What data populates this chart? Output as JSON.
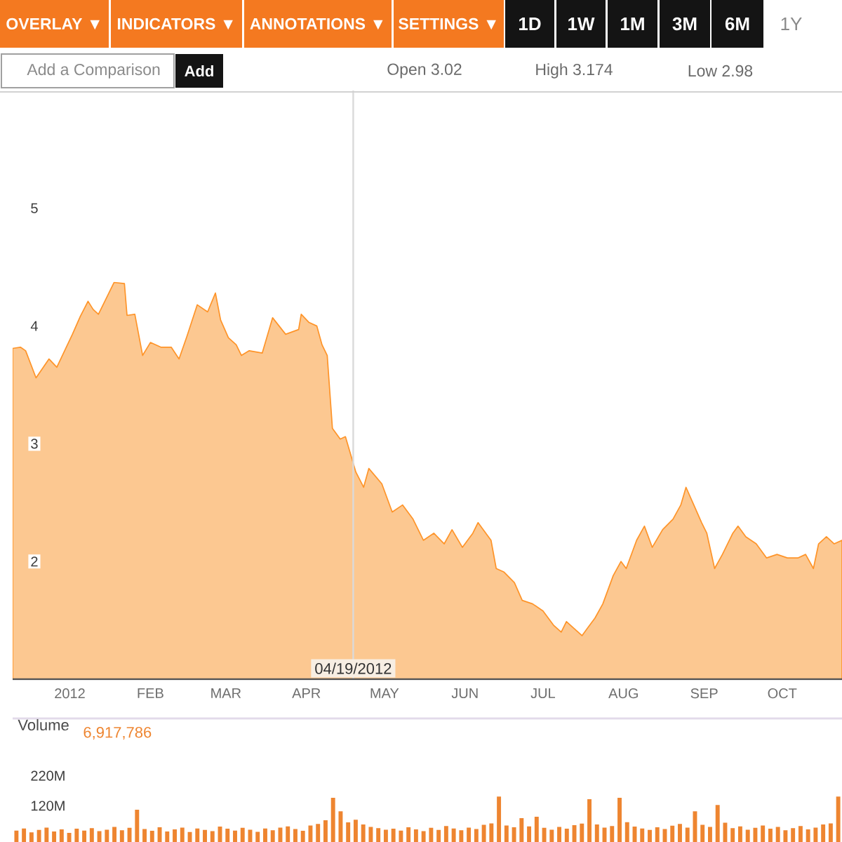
{
  "chart_data": [
    {
      "type": "area",
      "color": "#fcc891",
      "xlim": [
        "2011-12-10",
        "2012-10-24"
      ],
      "ylim": [
        1,
        6
      ],
      "xticks": [
        {
          "value": "2012-01-01",
          "label": "2012"
        },
        {
          "value": "2012-02-01",
          "label": "FEB"
        },
        {
          "value": "2012-03-01",
          "label": "MAR"
        },
        {
          "value": "2012-04-01",
          "label": "APR"
        },
        {
          "value": "2012-05-01",
          "label": "MAY"
        },
        {
          "value": "2012-06-01",
          "label": "JUN"
        },
        {
          "value": "2012-07-01",
          "label": "JUL"
        },
        {
          "value": "2012-08-01",
          "label": "AUG"
        },
        {
          "value": "2012-09-01",
          "label": "SEP"
        },
        {
          "value": "2012-10-01",
          "label": "OCT"
        }
      ],
      "yticks": [
        2,
        3,
        4,
        5
      ],
      "ref_lines": [
        {
          "axis": "x",
          "value": "2012-04-19",
          "label": "04/19/2012",
          "color": "#dadada"
        }
      ],
      "annotations": [
        "OVERLAY ▼",
        "INDICATORS ▼",
        "ANNOTATIONS ▼",
        "SETTINGS ▼",
        "1D",
        "1W",
        "1M",
        "3M",
        "6M",
        "1Y",
        "Add a Comparison",
        "Add",
        "Open 3.02",
        "High 3.174",
        "Low 2.98"
      ],
      "x": [
        "2011-12-10",
        "2011-12-13",
        "2011-12-15",
        "2011-12-19",
        "2011-12-24",
        "2011-12-27",
        "2012-01-02",
        "2012-01-05",
        "2012-01-08",
        "2012-01-10",
        "2012-01-12",
        "2012-01-18",
        "2012-01-22",
        "2012-01-23",
        "2012-01-26",
        "2012-01-29",
        "2012-02-01",
        "2012-02-05",
        "2012-02-09",
        "2012-02-12",
        "2012-02-15",
        "2012-02-19",
        "2012-02-23",
        "2012-02-26",
        "2012-02-28",
        "2012-03-02",
        "2012-03-05",
        "2012-03-07",
        "2012-03-10",
        "2012-03-15",
        "2012-03-19",
        "2012-03-24",
        "2012-03-29",
        "2012-03-30",
        "2012-04-02",
        "2012-04-05",
        "2012-04-07",
        "2012-04-09",
        "2012-04-11",
        "2012-04-14",
        "2012-04-16",
        "2012-04-20",
        "2012-04-23",
        "2012-04-25",
        "2012-04-30",
        "2012-05-04",
        "2012-05-08",
        "2012-05-12",
        "2012-05-16",
        "2012-05-20",
        "2012-05-24",
        "2012-05-27",
        "2012-05-31",
        "2012-06-04",
        "2012-06-06",
        "2012-06-11",
        "2012-06-13",
        "2012-06-16",
        "2012-06-20",
        "2012-06-23",
        "2012-06-27",
        "2012-07-01",
        "2012-07-05",
        "2012-07-08",
        "2012-07-10",
        "2012-07-13",
        "2012-07-16",
        "2012-07-18",
        "2012-07-21",
        "2012-07-24",
        "2012-07-28",
        "2012-07-31",
        "2012-08-02",
        "2012-08-06",
        "2012-08-09",
        "2012-08-12",
        "2012-08-16",
        "2012-08-20",
        "2012-08-23",
        "2012-08-25",
        "2012-08-28",
        "2012-08-31",
        "2012-09-02",
        "2012-09-05",
        "2012-09-08",
        "2012-09-12",
        "2012-09-14",
        "2012-09-17",
        "2012-09-21",
        "2012-09-25",
        "2012-09-29",
        "2012-10-03",
        "2012-10-07",
        "2012-10-10",
        "2012-10-13",
        "2012-10-15",
        "2012-10-18",
        "2012-10-21",
        "2012-10-24"
      ],
      "values": [
        3.81,
        3.82,
        3.79,
        3.56,
        3.72,
        3.65,
        3.93,
        4.08,
        4.21,
        4.14,
        4.1,
        4.37,
        4.36,
        4.09,
        4.1,
        3.75,
        3.86,
        3.82,
        3.82,
        3.72,
        3.91,
        4.18,
        4.12,
        4.28,
        4.05,
        3.9,
        3.84,
        3.75,
        3.79,
        3.77,
        4.07,
        3.93,
        3.97,
        4.1,
        4.03,
        4.0,
        3.84,
        3.75,
        3.13,
        3.04,
        3.06,
        2.76,
        2.63,
        2.79,
        2.66,
        2.42,
        2.48,
        2.36,
        2.18,
        2.24,
        2.15,
        2.27,
        2.12,
        2.24,
        2.33,
        2.18,
        1.94,
        1.91,
        1.82,
        1.67,
        1.64,
        1.58,
        1.46,
        1.4,
        1.49,
        1.43,
        1.37,
        1.43,
        1.52,
        1.64,
        1.88,
        2.0,
        1.94,
        2.18,
        2.3,
        2.12,
        2.27,
        2.36,
        2.48,
        2.63,
        2.48,
        2.33,
        2.24,
        1.94,
        2.06,
        2.24,
        2.3,
        2.21,
        2.15,
        2.03,
        2.06,
        2.03,
        2.03,
        2.06,
        1.94,
        2.15,
        2.21,
        2.15,
        2.18
      ]
    },
    {
      "type": "bar",
      "title": "Volume",
      "annotations": [
        "6,917,786"
      ],
      "color": "#ee8530",
      "tick_labels": "y",
      "ylim": [
        0,
        410
      ],
      "yticks": [
        {
          "value": 120,
          "label": "120M"
        },
        {
          "value": 220,
          "label": "220M"
        }
      ],
      "categories": [
        null,
        null,
        null,
        null,
        null,
        null,
        null,
        null,
        null,
        null,
        null,
        null,
        null,
        null,
        null,
        null,
        null,
        null,
        null,
        null,
        null,
        null,
        null,
        null,
        null,
        null,
        null,
        null,
        null,
        null,
        null,
        null,
        null,
        null,
        null,
        null,
        null,
        null,
        null,
        null,
        null,
        null,
        null,
        null,
        null,
        null,
        null,
        null,
        null,
        null,
        null,
        null,
        null,
        null,
        null,
        null,
        null,
        null,
        null,
        null,
        null,
        null,
        null,
        null,
        null,
        null,
        null,
        null,
        null,
        null,
        null,
        null,
        null,
        null,
        null,
        null,
        null,
        null,
        null,
        null,
        null,
        null,
        null,
        null,
        null,
        null,
        null,
        null,
        null,
        null,
        null,
        null,
        null,
        null,
        null,
        null,
        null,
        null,
        null,
        null,
        null,
        null,
        null,
        null,
        null,
        null,
        null,
        null,
        null,
        null
      ],
      "values": [
        38,
        45,
        32,
        40,
        48,
        35,
        42,
        30,
        44,
        38,
        46,
        36,
        41,
        50,
        39,
        47,
        107,
        43,
        37,
        49,
        35,
        42,
        48,
        33,
        45,
        40,
        36,
        51,
        44,
        38,
        47,
        41,
        34,
        45,
        39,
        48,
        52,
        43,
        37,
        55,
        60,
        72,
        147,
        102,
        65,
        74,
        58,
        50,
        46,
        41,
        44,
        38,
        49,
        42,
        36,
        47,
        40,
        53,
        45,
        39,
        48,
        43,
        57,
        62,
        151,
        55,
        49,
        79,
        52,
        84,
        47,
        41,
        50,
        44,
        56,
        61,
        142,
        58,
        48,
        53,
        147,
        66,
        51,
        45,
        40,
        49,
        43,
        54,
        60,
        48,
        102,
        57,
        50,
        123,
        64,
        46,
        52,
        41,
        47,
        55,
        44,
        50,
        39,
        46,
        53,
        42,
        48,
        58,
        62,
        151
      ]
    }
  ]
}
